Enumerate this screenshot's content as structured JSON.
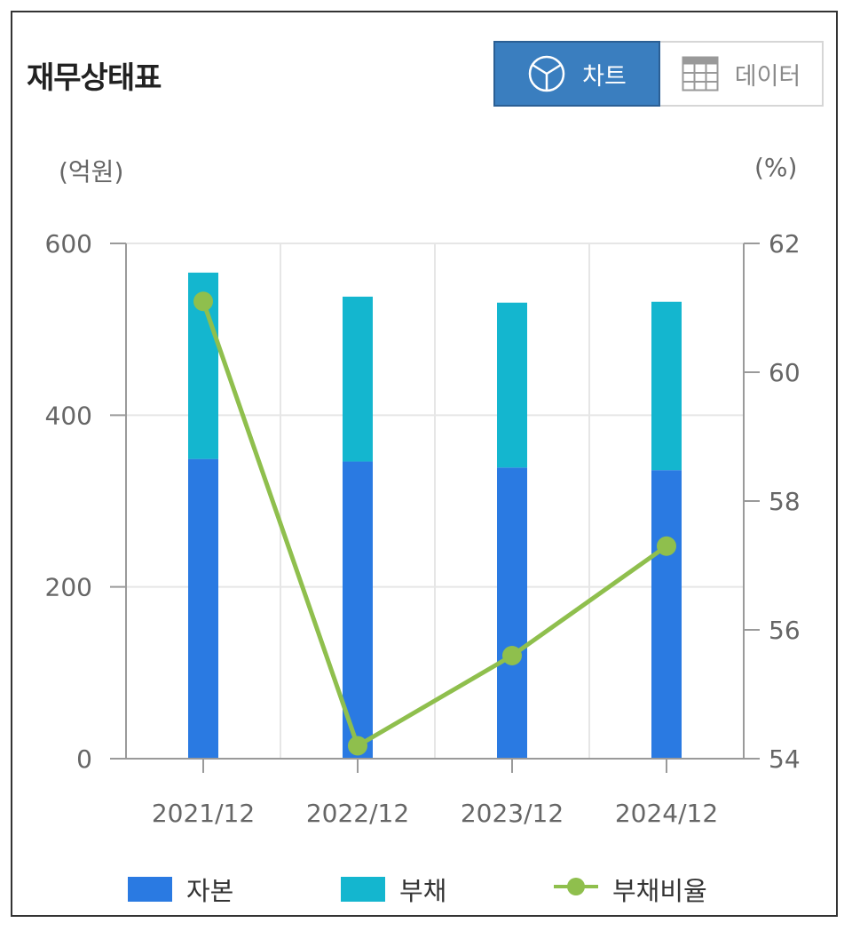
{
  "header": {
    "title": "재무상태표",
    "toggle": {
      "chart_label": "차트",
      "data_label": "데이터",
      "active": "chart"
    }
  },
  "colors": {
    "equity": "#2a7ae2",
    "liability": "#14b6cf",
    "ratio": "#8fbf4d",
    "active_button": "#3a7ebf"
  },
  "chart_data": {
    "type": "bar",
    "stacked": true,
    "categories": [
      "2021/12",
      "2022/12",
      "2023/12",
      "2024/12"
    ],
    "series": [
      {
        "name": "자본",
        "values": [
          349,
          346,
          339,
          336
        ],
        "axis": "left"
      },
      {
        "name": "부채",
        "values": [
          217,
          192,
          192,
          196
        ],
        "axis": "left"
      }
    ],
    "line_series": [
      {
        "name": "부채비율",
        "values": [
          61.1,
          54.2,
          55.6,
          57.3
        ],
        "axis": "right"
      }
    ],
    "ylabel_left": "(억원)",
    "ylabel_right": "(%)",
    "ylim_left": [
      0,
      600
    ],
    "ylim_right": [
      54,
      62
    ],
    "yticks_left": [
      "0",
      "200",
      "400",
      "600"
    ],
    "yticks_right": [
      "54",
      "56",
      "58",
      "60",
      "62"
    ],
    "grid": true,
    "legend_position": "bottom"
  }
}
